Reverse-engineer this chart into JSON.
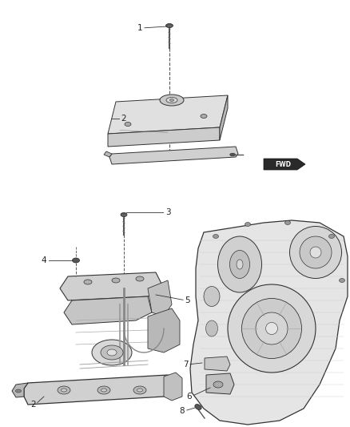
{
  "background_color": "#ffffff",
  "fig_width": 4.38,
  "fig_height": 5.33,
  "dpi": 100,
  "line_color": "#333333",
  "text_color": "#222222",
  "label_fontsize": 7.5
}
